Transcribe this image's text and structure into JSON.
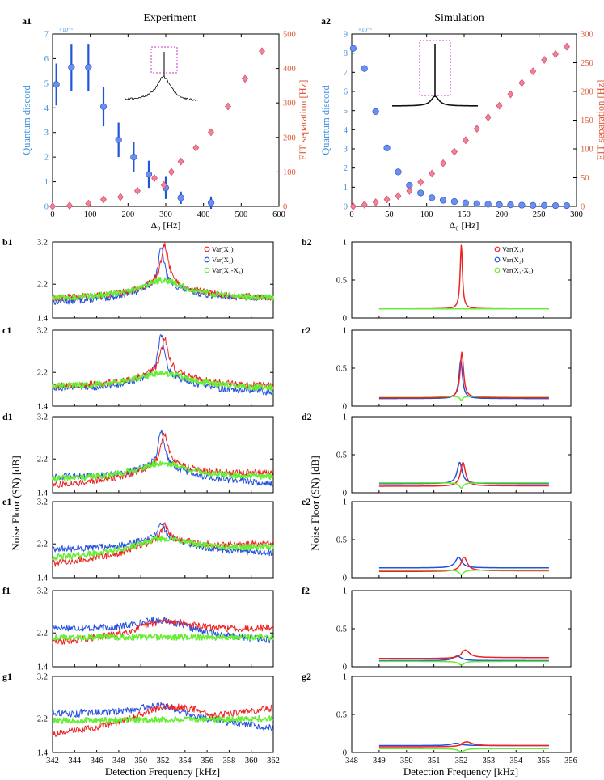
{
  "figure": {
    "col1_title": "Experiment",
    "col2_title": "Simulation",
    "noise_ylabel": "Noise Floor (SN) [dB]",
    "freq_xlabel": "Detection Frequency [kHz]"
  },
  "colors": {
    "blue_axis": "#3b8fe0",
    "red_axis": "#e05a3a",
    "discord_marker": "#6b8ff0",
    "eit_marker": "#f47f98",
    "var_x1": "#ee2222",
    "var_x2": "#2450e0",
    "var_diff": "#66ee33",
    "inset_box": "#cc33cc"
  },
  "chart_data": [
    {
      "id": "a1",
      "label": "a1",
      "type": "scatter",
      "title": "Experiment",
      "xlabel": "Δ₀ [Hz]",
      "ylabel_left": "Quantum discord",
      "ylabel_right": "EIT separation [Hz]",
      "left_scale_note": "×10⁻³",
      "xlim": [
        0,
        600
      ],
      "xticks": [
        0,
        100,
        200,
        300,
        400,
        500,
        600
      ],
      "ylim_left": [
        0,
        7
      ],
      "yticks_left": [
        0,
        1,
        2,
        3,
        4,
        5,
        6,
        7
      ],
      "ylim_right": [
        0,
        500
      ],
      "yticks_right": [
        0,
        100,
        200,
        300,
        400,
        500
      ],
      "series": [
        {
          "name": "Quantum discord",
          "axis": "left",
          "marker": "circle",
          "x": [
            10,
            50,
            95,
            135,
            175,
            215,
            255,
            300,
            340,
            420
          ],
          "y": [
            4.95,
            5.65,
            5.65,
            4.05,
            2.7,
            2.0,
            1.3,
            0.75,
            0.35,
            0.15
          ],
          "err": [
            0.85,
            0.95,
            0.95,
            0.8,
            0.7,
            0.6,
            0.55,
            0.45,
            0.25,
            0.25
          ]
        },
        {
          "name": "EIT separation",
          "axis": "right",
          "marker": "diamond",
          "x": [
            0,
            45,
            95,
            135,
            180,
            225,
            270,
            295,
            315,
            340,
            380,
            420,
            465,
            510,
            555
          ],
          "y": [
            0,
            2,
            8,
            20,
            27,
            45,
            82,
            62,
            100,
            130,
            170,
            215,
            290,
            370,
            450
          ]
        }
      ]
    },
    {
      "id": "a2",
      "label": "a2",
      "type": "scatter",
      "title": "Simulation",
      "xlabel": "Δ₀ [Hz]",
      "ylabel_left": "Quantum discord",
      "ylabel_right": "EIT separation [Hz]",
      "left_scale_note": "×10⁻³",
      "xlim": [
        0,
        300
      ],
      "xticks": [
        0,
        50,
        100,
        150,
        200,
        250,
        300
      ],
      "ylim_left": [
        0,
        9
      ],
      "yticks_left": [
        0,
        1,
        2,
        3,
        4,
        5,
        6,
        7,
        8,
        9
      ],
      "ylim_right": [
        0,
        300
      ],
      "yticks_right": [
        0,
        50,
        100,
        150,
        200,
        250,
        300
      ],
      "series": [
        {
          "name": "Quantum discord",
          "axis": "left",
          "marker": "circle",
          "x": [
            2,
            17,
            32,
            47,
            62,
            77,
            92,
            107,
            122,
            137,
            152,
            167,
            182,
            197,
            212,
            227,
            242,
            257,
            272,
            287
          ],
          "y": [
            8.25,
            7.2,
            4.95,
            3.05,
            1.8,
            1.1,
            0.7,
            0.45,
            0.32,
            0.25,
            0.18,
            0.14,
            0.11,
            0.09,
            0.08,
            0.06,
            0.05,
            0.05,
            0.04,
            0.04
          ]
        },
        {
          "name": "EIT separation",
          "axis": "right",
          "marker": "diamond",
          "x": [
            2,
            17,
            32,
            47,
            62,
            77,
            92,
            107,
            122,
            137,
            152,
            167,
            182,
            197,
            212,
            227,
            242,
            257,
            272,
            287
          ],
          "y": [
            0,
            3,
            7,
            12,
            18,
            27,
            42,
            57,
            75,
            95,
            115,
            135,
            155,
            175,
            195,
            215,
            235,
            255,
            265,
            278
          ]
        }
      ]
    },
    {
      "id": "b1",
      "label": "b1",
      "type": "line",
      "kind": "experiment",
      "xlim": [
        342,
        362
      ],
      "ylim": [
        1.4,
        3.2
      ],
      "yticks": [
        1.4,
        2.2,
        3.2
      ],
      "center": 352,
      "x1_peak": 3.15,
      "x2_peak": 3.05,
      "diff_peak": 2.3,
      "x1_left": 1.85,
      "x1_right": 1.85,
      "x2_left": 1.75,
      "x2_right": 1.85,
      "diff_left": 1.85,
      "diff_right": 1.85,
      "legend": [
        "Var(X₁)",
        "Var(X₂)",
        "Var(X₁-X₂)"
      ]
    },
    {
      "id": "c1",
      "label": "c1",
      "type": "line",
      "kind": "experiment",
      "xlim": [
        342,
        362
      ],
      "ylim": [
        1.4,
        3.2
      ],
      "yticks": [
        1.4,
        2.2,
        3.2
      ],
      "center": 352,
      "x1_peak": 3.0,
      "x2_peak": 3.1,
      "diff_peak": 2.15,
      "x1_left": 1.85,
      "x1_right": 1.85,
      "x2_left": 1.8,
      "x2_right": 1.7,
      "diff_left": 1.85,
      "diff_right": 1.8
    },
    {
      "id": "d1",
      "label": "d1",
      "type": "line",
      "kind": "experiment",
      "xlim": [
        342,
        362
      ],
      "ylim": [
        1.4,
        3.2
      ],
      "yticks": [
        1.4,
        2.2,
        3.2
      ],
      "center": 352,
      "x1_peak": 2.8,
      "x2_peak": 2.85,
      "diff_peak": 2.1,
      "x1_left": 1.55,
      "x1_right": 1.85,
      "x2_left": 1.75,
      "x2_right": 1.6,
      "diff_left": 1.7,
      "diff_right": 1.75
    },
    {
      "id": "e1",
      "label": "e1",
      "type": "line",
      "kind": "experiment",
      "xlim": [
        342,
        362
      ],
      "ylim": [
        1.4,
        3.2
      ],
      "yticks": [
        1.4,
        2.2,
        3.2
      ],
      "center": 352,
      "x1_peak": 2.65,
      "x2_peak": 2.7,
      "diff_peak": 2.1,
      "x1_left": 1.7,
      "x1_right": 2.2,
      "x2_left": 2.05,
      "x2_right": 1.95,
      "diff_left": 1.85,
      "diff_right": 2.1
    },
    {
      "id": "f1",
      "label": "f1",
      "type": "line",
      "kind": "experiment",
      "xlim": [
        342,
        362
      ],
      "ylim": [
        1.4,
        3.2
      ],
      "yticks": [
        1.4,
        2.2,
        3.2
      ],
      "center": 352,
      "x1_peak": 2.35,
      "x2_peak": 2.45,
      "diff_peak": 2.1,
      "x1_left": 1.95,
      "x1_right": 2.3,
      "x2_left": 2.3,
      "x2_right": 2.0,
      "diff_left": 2.1,
      "diff_right": 2.1
    },
    {
      "id": "g1",
      "label": "g1",
      "type": "line",
      "kind": "experiment",
      "xlim": [
        342,
        362
      ],
      "ylim": [
        1.4,
        3.2
      ],
      "yticks": [
        1.4,
        2.2,
        3.2
      ],
      "xticks": [
        342,
        344,
        346,
        348,
        350,
        352,
        354,
        356,
        358,
        360,
        362
      ],
      "center": 352,
      "x1_peak": 2.25,
      "x2_peak": 2.3,
      "diff_peak": 2.15,
      "x1_left": 1.8,
      "x1_right": 2.45,
      "x2_left": 2.35,
      "x2_right": 1.95,
      "diff_left": 2.15,
      "diff_right": 2.2
    },
    {
      "id": "b2",
      "label": "b2",
      "type": "line",
      "kind": "simulation",
      "xlim": [
        348,
        356
      ],
      "ylim": [
        0,
        1
      ],
      "yticks": [
        0,
        0.5,
        1
      ],
      "center": 352,
      "x1_amp": 0.84,
      "x2_amp": 0.0,
      "diff_dip": 0.0,
      "sep": 0.0,
      "x1_base": 0.12,
      "x2_base": 0.12,
      "diff_base": 0.12,
      "legend": [
        "Var(X₁)",
        "Var(X₂)",
        "Var(X₁-X₂)"
      ]
    },
    {
      "id": "c2",
      "label": "c2",
      "type": "line",
      "kind": "simulation",
      "xlim": [
        348,
        356
      ],
      "ylim": [
        0,
        1
      ],
      "yticks": [
        0,
        0.5,
        1
      ],
      "center": 352,
      "x1_amp": 0.6,
      "x2_amp": 0.5,
      "diff_dip": 0.05,
      "sep": 0.02,
      "x1_base": 0.11,
      "x2_base": 0.1,
      "diff_base": 0.13
    },
    {
      "id": "d2",
      "label": "d2",
      "type": "line",
      "kind": "simulation",
      "xlim": [
        348,
        356
      ],
      "ylim": [
        0,
        1
      ],
      "yticks": [
        0,
        0.5,
        1
      ],
      "center": 352,
      "x1_amp": 0.31,
      "x2_amp": 0.28,
      "diff_dip": 0.07,
      "sep": 0.06,
      "x1_base": 0.09,
      "x2_base": 0.12,
      "diff_base": 0.13
    },
    {
      "id": "e2",
      "label": "e2",
      "type": "line",
      "kind": "simulation",
      "xlim": [
        348,
        356
      ],
      "ylim": [
        0,
        1
      ],
      "yticks": [
        0,
        0.5,
        1
      ],
      "center": 352,
      "x1_amp": 0.18,
      "x2_amp": 0.14,
      "diff_dip": 0.06,
      "sep": 0.1,
      "x1_base": 0.09,
      "x2_base": 0.13,
      "diff_base": 0.1
    },
    {
      "id": "f2",
      "label": "f2",
      "type": "line",
      "kind": "simulation",
      "xlim": [
        348,
        356
      ],
      "ylim": [
        0,
        1
      ],
      "yticks": [
        0,
        0.5,
        1
      ],
      "center": 352,
      "x1_amp": 0.1,
      "x2_amp": 0.06,
      "diff_dip": 0.05,
      "sep": 0.15,
      "x1_base": 0.12,
      "x2_base": 0.08,
      "diff_base": 0.07
    },
    {
      "id": "g2",
      "label": "g2",
      "type": "line",
      "kind": "simulation",
      "xlim": [
        348,
        356
      ],
      "ylim": [
        0,
        1
      ],
      "yticks": [
        0,
        0.5,
        1
      ],
      "xticks": [
        348,
        349,
        350,
        351,
        352,
        353,
        354,
        355,
        356
      ],
      "center": 352,
      "x1_amp": 0.05,
      "x2_amp": 0.03,
      "diff_dip": 0.04,
      "sep": 0.2,
      "x1_base": 0.09,
      "x2_base": 0.09,
      "diff_base": 0.05
    }
  ]
}
